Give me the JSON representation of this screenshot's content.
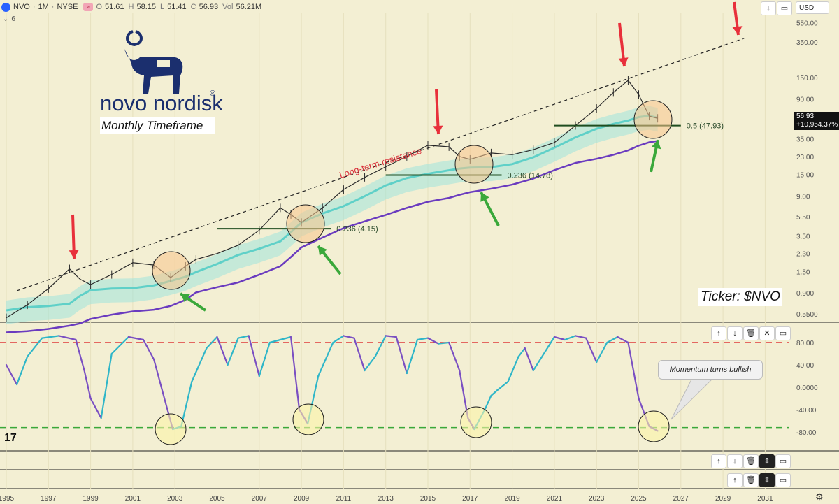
{
  "header": {
    "symbol": "NVO",
    "interval": "1M",
    "exchange": "NYSE",
    "open_label": "O",
    "open": "51.61",
    "high_label": "H",
    "high": "58.15",
    "low_label": "L",
    "low": "51.41",
    "close_label": "C",
    "close": "56.93",
    "vol_label": "Vol",
    "vol": "56.21M",
    "indicators_count": "6",
    "currency": "USD"
  },
  "brand": {
    "name": "novo nordisk",
    "registered": "®"
  },
  "annotations": {
    "timeframe": "Monthly Timeframe",
    "ticker": "Ticker: $NVO",
    "resistance": "Long-term resistance",
    "momentum": "Momentum turns bullish",
    "fib_1": "0.236 (4.15)",
    "fib_2": "0.236 (14.78)",
    "fib_3": "0.5 (47.93)"
  },
  "price_tag": {
    "price": "56.93",
    "change": "+10,954.37%"
  },
  "colors": {
    "background": "#f3efd3",
    "price_line": "#2b2b2b",
    "ema_band": "#5fd0c8",
    "long_ma": "#6a3bbf",
    "resistance": "#222222",
    "red_arrow": "#e8303b",
    "green_arrow": "#3aa83a",
    "osc_upper": "#e03a3a",
    "osc_lower": "#3aa83a"
  },
  "chart_data": [
    {
      "type": "line",
      "title": "",
      "scale": "log",
      "x_ticks": [
        "1995",
        "1997",
        "1999",
        "2001",
        "2003",
        "2005",
        "2007",
        "2009",
        "2011",
        "2013",
        "2015",
        "2017",
        "2019",
        "2021",
        "2023",
        "2025",
        "2027",
        "2029",
        "2031"
      ],
      "y_ticks": [
        "550.00",
        "350.00",
        "150.00",
        "90.00",
        "35.00",
        "23.00",
        "15.00",
        "9.00",
        "5.50",
        "3.50",
        "2.30",
        "1.50",
        "0.900",
        "0.5500"
      ],
      "ylim": [
        0.45,
        700
      ],
      "series": [
        {
          "x": [
            1995,
            1996,
            1997,
            1998,
            1998.5,
            1999,
            2000,
            2001,
            2002,
            2002.8,
            2003.5,
            2004,
            2005,
            2006,
            2007,
            2008,
            2008.5,
            2009,
            2010,
            2011,
            2012,
            2013,
            2014,
            2015,
            2016,
            2016.5,
            2017,
            2018,
            2019,
            2020,
            2021,
            2022,
            2023,
            2023.8,
            2024.5,
            2025,
            2025.5,
            2025.9
          ],
          "y": [
            0.5,
            0.68,
            1.0,
            1.6,
            1.25,
            1.1,
            1.4,
            1.85,
            1.75,
            1.3,
            1.7,
            2.0,
            2.3,
            2.8,
            4.0,
            6.8,
            5.8,
            4.8,
            6.8,
            10.5,
            14.0,
            18.0,
            23.0,
            30.0,
            29.0,
            23.0,
            21.5,
            25.0,
            24.0,
            27.0,
            32.0,
            48.0,
            72.0,
            105.0,
            140.0,
            100.0,
            60.0,
            56.93
          ]
        }
      ],
      "resistance_line": {
        "x": [
          1995.5,
          2030
        ],
        "y": [
          0.95,
          380
        ]
      },
      "fib_levels": [
        {
          "label": "0.236 (4.15)",
          "value": 4.15,
          "x": [
            2005,
            2010.4
          ]
        },
        {
          "label": "0.236 (14.78)",
          "value": 14.78,
          "x": [
            2013,
            2018.5
          ]
        },
        {
          "label": "0.5 (47.93)",
          "value": 47.93,
          "x": [
            2021,
            2027
          ]
        }
      ]
    },
    {
      "type": "line",
      "title": "",
      "y_ticks": [
        "80.00",
        "40.00",
        "0.0000",
        "-40.00",
        "-80.00"
      ],
      "ylim": [
        -100,
        100
      ],
      "levels": [
        80,
        -72
      ],
      "series": [
        {
          "x": [
            1995,
            1995.5,
            1996,
            1996.7,
            1997.5,
            1998.3,
            1998.7,
            1999,
            1999.5,
            2000,
            2000.8,
            2001.5,
            2002,
            2002.5,
            2002.9,
            2003.3,
            2003.8,
            2004.5,
            2005,
            2005.5,
            2006,
            2006.5,
            2007,
            2007.5,
            2008.5,
            2008.9,
            2009.3,
            2009.8,
            2010.5,
            2011,
            2011.5,
            2012,
            2012.5,
            2013,
            2013.5,
            2014,
            2014.5,
            2015,
            2015.5,
            2016,
            2016.5,
            2016.9,
            2017.2,
            2017.7,
            2018,
            2018.3,
            2018.8,
            2019.3,
            2019.6,
            2020,
            2021,
            2021.5,
            2022,
            2022.5,
            2023,
            2023.5,
            2024,
            2024.5,
            2025,
            2025.5,
            2025.9
          ],
          "y": [
            40,
            5,
            55,
            88,
            92,
            85,
            30,
            -20,
            -55,
            60,
            90,
            85,
            50,
            -20,
            -75,
            -70,
            10,
            70,
            90,
            40,
            88,
            92,
            20,
            80,
            90,
            -40,
            -65,
            20,
            80,
            92,
            88,
            30,
            55,
            92,
            90,
            25,
            85,
            88,
            78,
            80,
            30,
            -55,
            -75,
            -40,
            -15,
            -5,
            10,
            55,
            70,
            30,
            90,
            85,
            92,
            88,
            45,
            80,
            90,
            80,
            -20,
            -70,
            -78
          ]
        }
      ]
    }
  ]
}
